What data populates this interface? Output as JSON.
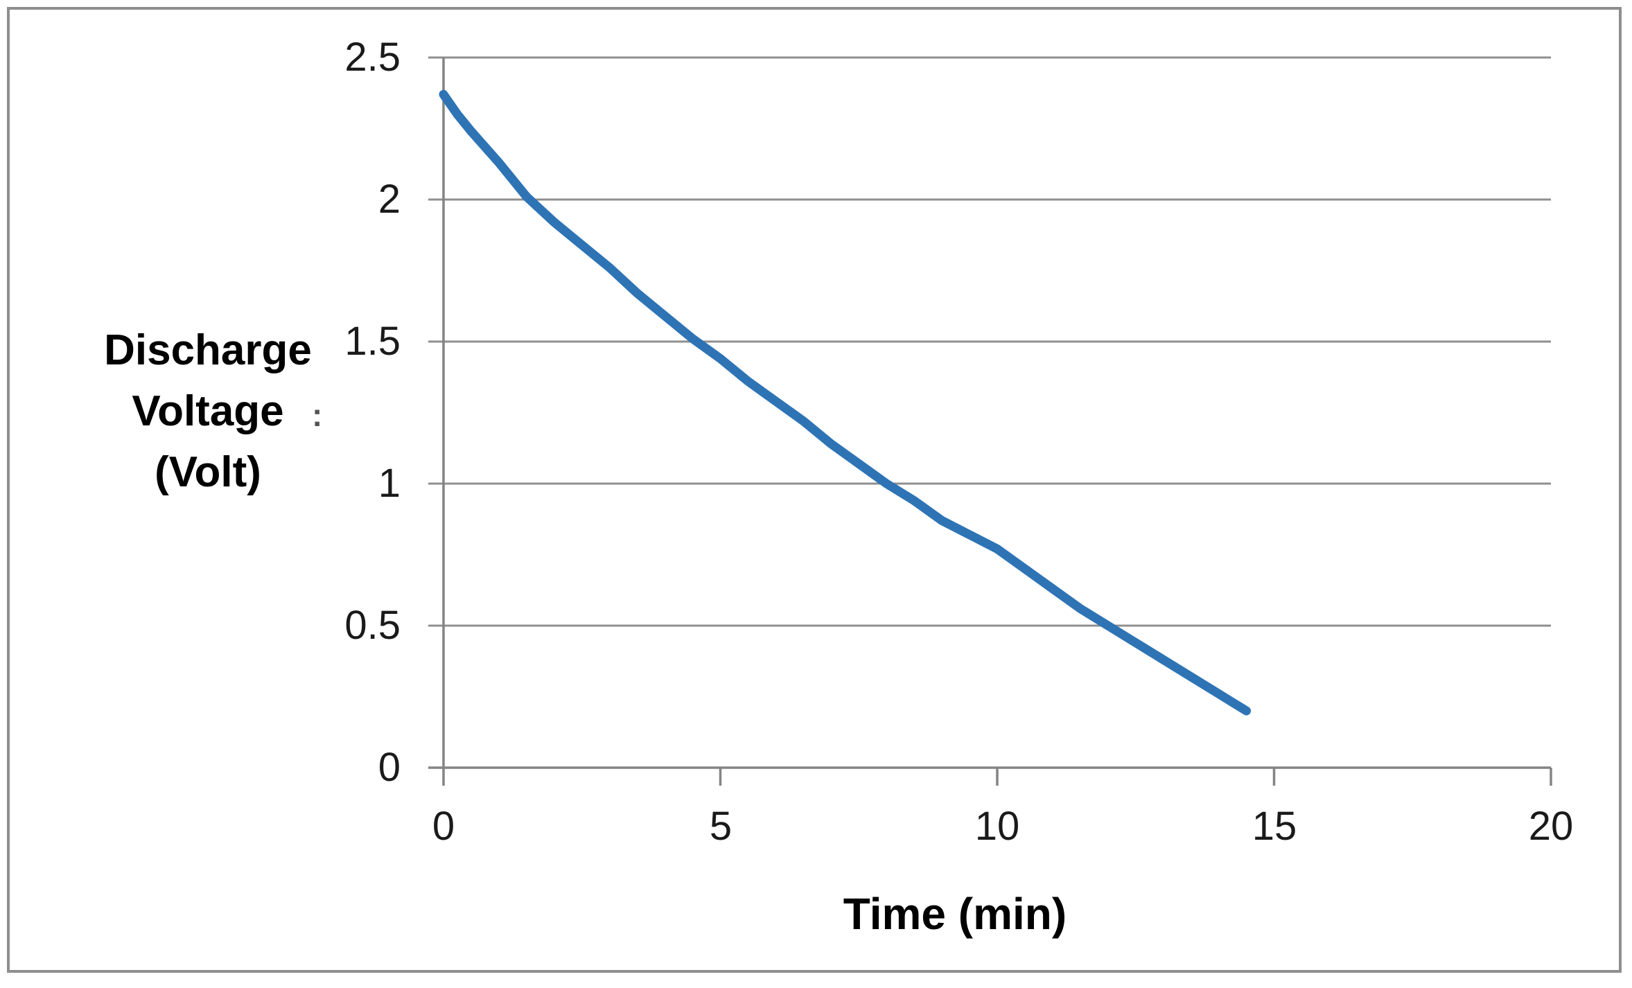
{
  "chart_data": {
    "type": "line",
    "title": "",
    "xlabel": "Time (min)",
    "ylabel_lines": [
      "Discharge",
      "Voltage",
      "(Volt)"
    ],
    "ylabel_artifact": ":",
    "xlim": [
      0,
      20
    ],
    "ylim": [
      0,
      2.5
    ],
    "x_ticks": [
      0,
      5,
      10,
      15,
      20
    ],
    "y_ticks": [
      0,
      0.5,
      1,
      1.5,
      2,
      2.5
    ],
    "x_tick_labels": [
      "0",
      "5",
      "10",
      "15",
      "20"
    ],
    "y_tick_labels": [
      "0",
      "0.5",
      "1",
      "1.5",
      "2",
      "2.5"
    ],
    "grid": "horizontal",
    "legend": "none",
    "x": [
      0,
      0.25,
      0.5,
      1,
      1.5,
      2,
      2.5,
      3,
      3.5,
      4,
      4.5,
      5,
      5.5,
      6,
      6.5,
      7,
      7.5,
      8,
      8.5,
      9,
      9.5,
      10,
      10.5,
      11,
      11.5,
      12,
      12.5,
      13,
      13.5,
      14,
      14.5
    ],
    "series": [
      {
        "values": [
          2.37,
          2.3,
          2.24,
          2.13,
          2.01,
          1.92,
          1.84,
          1.76,
          1.67,
          1.59,
          1.51,
          1.44,
          1.36,
          1.29,
          1.22,
          1.14,
          1.07,
          1.0,
          0.94,
          0.87,
          0.82,
          0.77,
          0.7,
          0.63,
          0.56,
          0.5,
          0.44,
          0.38,
          0.32,
          0.26,
          0.2
        ]
      }
    ],
    "line_color": "#2E74B5",
    "axis_color": "#848484",
    "grid_color": "#8F8F8F",
    "text_color": "#1A1A1A",
    "border_color": "#8E8E8E"
  }
}
